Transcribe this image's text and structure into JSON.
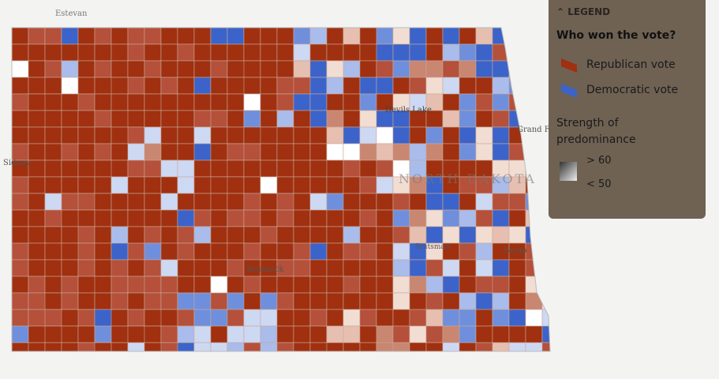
{
  "legend": {
    "header": "LEGEND",
    "question": "Who won the vote?",
    "items": [
      "Republican vote",
      "Democratic vote"
    ],
    "strength_title": "Strength of predominance",
    "strength_items": [
      "> 60",
      "< 50"
    ]
  },
  "places": [
    "Estevan",
    "Devils Lake",
    "Grand Forks",
    "Sidney",
    "NORTH DAKOTA",
    "Bismarck",
    "Fargo",
    "Stutsman"
  ]
}
